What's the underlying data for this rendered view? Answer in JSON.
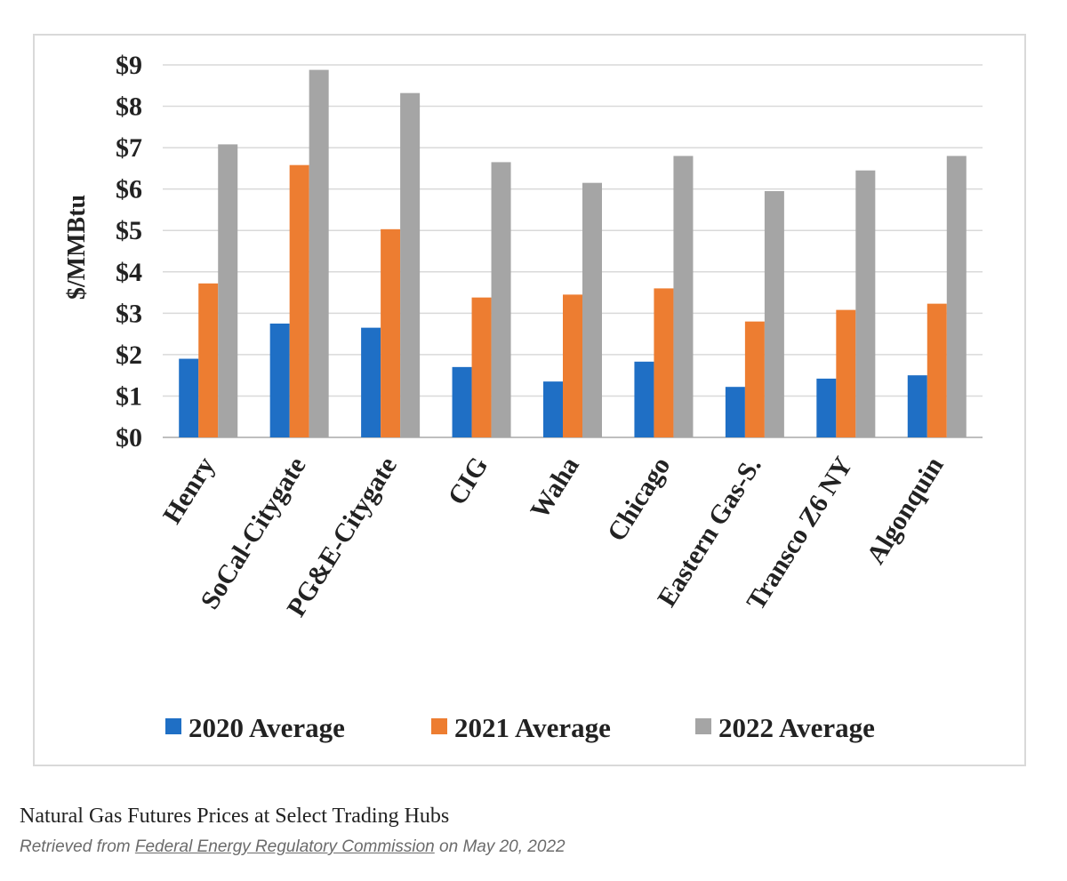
{
  "chart_data": {
    "type": "bar",
    "title": "",
    "xlabel": "",
    "ylabel": "$/MMBtu",
    "ylim": [
      0,
      9
    ],
    "yticks": [
      "$0",
      "$1",
      "$2",
      "$3",
      "$4",
      "$5",
      "$6",
      "$7",
      "$8",
      "$9"
    ],
    "grid": true,
    "legend_position": "bottom",
    "categories": [
      "Henry",
      "SoCal-Citygate",
      "PG&E-Citygate",
      "CIG",
      "Waha",
      "Chicago",
      "Eastern Gas-S.",
      "Transco Z6 NY",
      "Algonquin"
    ],
    "series": [
      {
        "name": "2020 Average",
        "color": "#1f6fc5",
        "values": [
          1.9,
          2.75,
          2.65,
          1.7,
          1.35,
          1.83,
          1.22,
          1.42,
          1.5
        ]
      },
      {
        "name": "2021 Average",
        "color": "#ed7d31",
        "values": [
          3.72,
          6.58,
          5.03,
          3.38,
          3.45,
          3.6,
          2.8,
          3.08,
          3.23
        ]
      },
      {
        "name": "2022 Average",
        "color": "#a5a5a5",
        "values": [
          7.08,
          8.88,
          8.32,
          6.65,
          6.15,
          6.8,
          5.95,
          6.45,
          6.8
        ]
      }
    ]
  },
  "caption": {
    "title": "Natural Gas Futures Prices at Select Trading Hubs",
    "source_prefix": "Retrieved from ",
    "source_link": "Federal Energy Regulatory Commission",
    "source_suffix": " on May 20, 2022"
  }
}
